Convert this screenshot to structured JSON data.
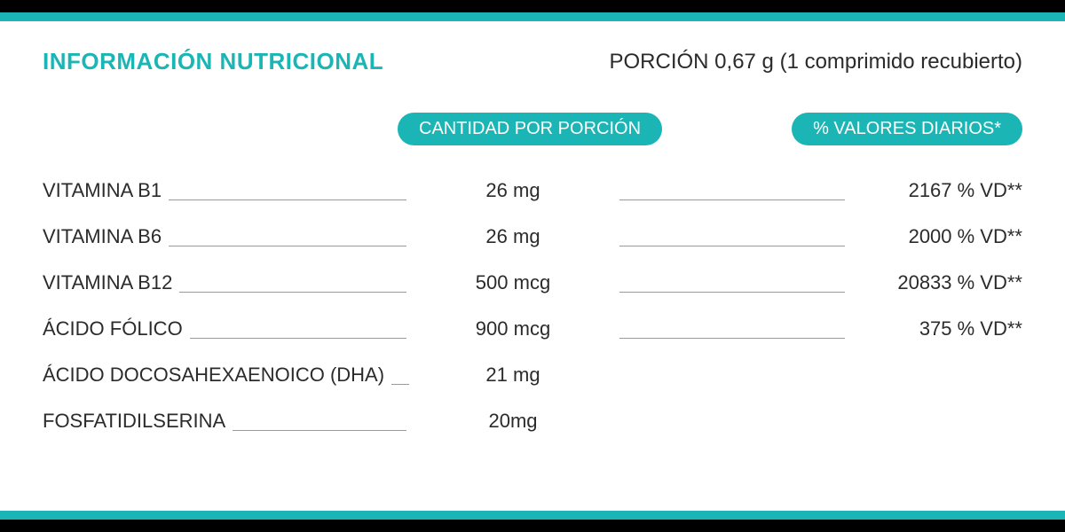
{
  "colors": {
    "teal": "#1bb5b5",
    "black": "#000000",
    "text": "#2b2b2b",
    "line": "#999999",
    "white": "#ffffff"
  },
  "header": {
    "title": "INFORMACIÓN NUTRICIONAL",
    "portion": "PORCIÓN 0,67 g (1 comprimido recubierto)"
  },
  "columnHeaders": {
    "amount": "CANTIDAD POR PORCIÓN",
    "dv": "% VALORES DIARIOS*"
  },
  "rows": [
    {
      "name": "VITAMINA B1",
      "amount": "26 mg",
      "dv": "2167 % VD**"
    },
    {
      "name": "VITAMINA B6",
      "amount": "26 mg",
      "dv": "2000 % VD**"
    },
    {
      "name": "VITAMINA B12",
      "amount": "500 mcg",
      "dv": "20833 % VD**"
    },
    {
      "name": "ÁCIDO FÓLICO",
      "amount": "900 mcg",
      "dv": "375 % VD**"
    },
    {
      "name": "ÁCIDO DOCOSAHEXAENOICO (DHA)",
      "amount": "21 mg",
      "dv": ""
    },
    {
      "name": "FOSFATIDILSERINA",
      "amount": "20mg",
      "dv": ""
    }
  ]
}
